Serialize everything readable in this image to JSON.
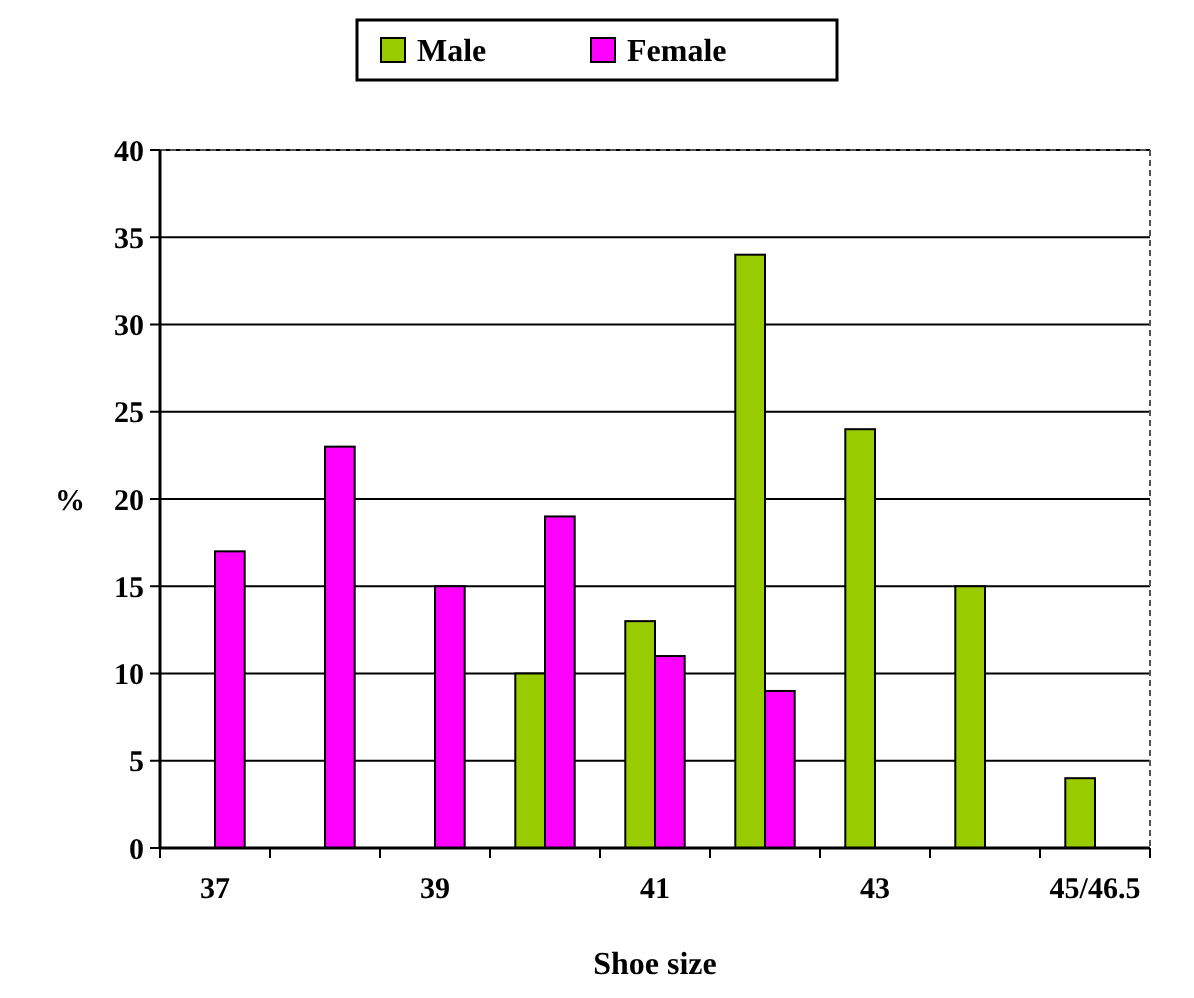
{
  "chart_data": {
    "type": "bar",
    "xlabel": "Shoe size",
    "ylabel": "%",
    "categories": [
      "37",
      null,
      "39",
      null,
      "41",
      null,
      "43",
      null,
      "45/46.5"
    ],
    "series": [
      {
        "name": "Male",
        "color": "#99cc00",
        "values": [
          null,
          null,
          null,
          10,
          13,
          34,
          24,
          15,
          4
        ]
      },
      {
        "name": "Female",
        "color": "#ff00ff",
        "values": [
          17,
          23,
          15,
          19,
          11,
          9,
          null,
          null,
          null
        ]
      }
    ],
    "ylim": [
      0,
      40
    ],
    "yticks": [
      0,
      5,
      10,
      15,
      20,
      25,
      30,
      35,
      40
    ],
    "grid": "y",
    "legend": "top"
  }
}
